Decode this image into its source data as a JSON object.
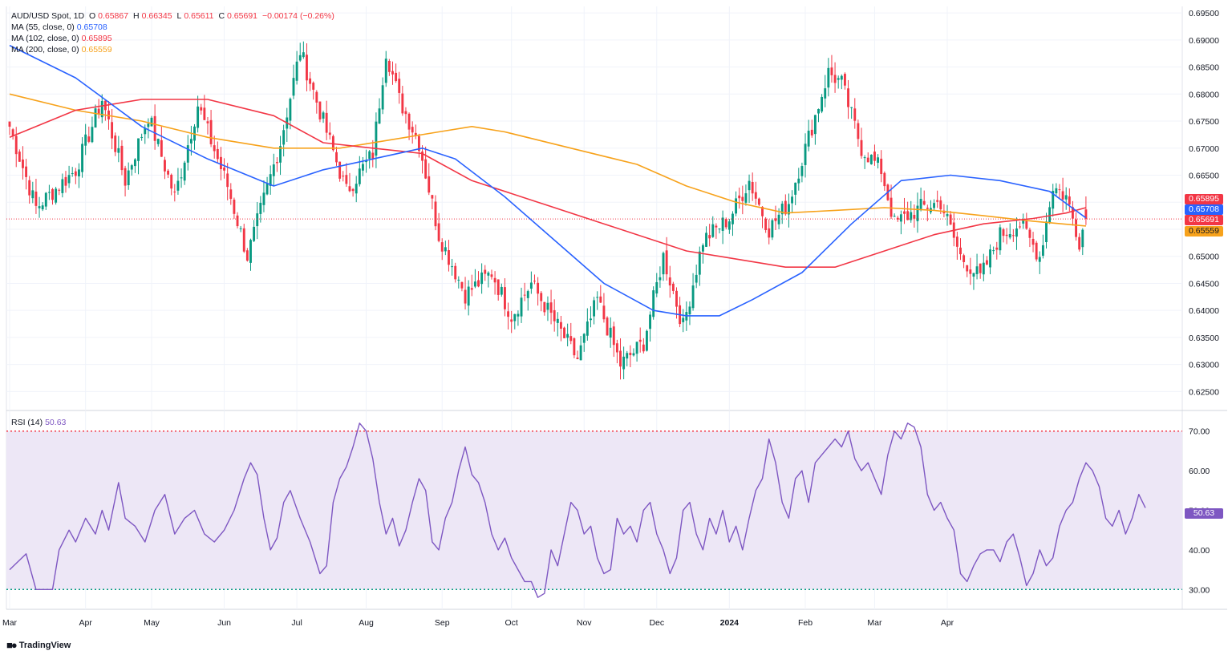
{
  "header": {
    "symbol": "AUD/USD Spot, 1D",
    "o_label": "O",
    "o_value": "0.65867",
    "h_label": "H",
    "h_value": "0.66345",
    "l_label": "L",
    "l_value": "0.65611",
    "c_label": "C",
    "c_value": "0.65691",
    "change": "−0.00174 (−0.26%)"
  },
  "ma_legend": [
    {
      "label": "MA (55, close, 0)",
      "value": "0.65708"
    },
    {
      "label": "MA (102, close, 0)",
      "value": "0.65895"
    },
    {
      "label": "MA (200, close, 0)",
      "value": "0.65559"
    }
  ],
  "rsi_legend": {
    "label": "RSI (14)",
    "value": "50.63"
  },
  "badges": {
    "ma102": "0.65895",
    "ma55": "0.65708",
    "last": "0.65691",
    "ma200": "0.65559",
    "rsi": "50.63"
  },
  "brand": "TradingView",
  "colors": {
    "up": "#089981",
    "down": "#f23645",
    "ma55": "#2962ff",
    "ma102": "#f23645",
    "ma200": "#f7a21b",
    "rsi": "#7e57c2",
    "rsi_band": "#ede7f6"
  },
  "chart_data": [
    {
      "type": "candlestick",
      "title": "AUD/USD Spot, 1D",
      "ylim": [
        0.6215,
        0.6962
      ],
      "y_ticks": [
        "0.69500",
        "0.69000",
        "0.68500",
        "0.68000",
        "0.67500",
        "0.67000",
        "0.66500",
        "0.66000",
        "0.65500",
        "0.65000",
        "0.64500",
        "0.64000",
        "0.63500",
        "0.63000",
        "0.62500"
      ],
      "x_ticks": [
        "Mar",
        "Apr",
        "May",
        "Jun",
        "Jul",
        "Aug",
        "Sep",
        "Oct",
        "Nov",
        "Dec",
        "2024",
        "Feb",
        "Mar",
        "Apr"
      ],
      "anchors": [
        {
          "day": 0,
          "close": 0.674
        },
        {
          "day": 8,
          "close": 0.659
        },
        {
          "day": 20,
          "close": 0.666
        },
        {
          "day": 28,
          "close": 0.679
        },
        {
          "day": 35,
          "close": 0.664
        },
        {
          "day": 42,
          "close": 0.676
        },
        {
          "day": 50,
          "close": 0.661
        },
        {
          "day": 57,
          "close": 0.678
        },
        {
          "day": 66,
          "close": 0.663
        },
        {
          "day": 72,
          "close": 0.65
        },
        {
          "day": 82,
          "close": 0.671
        },
        {
          "day": 88,
          "close": 0.688
        },
        {
          "day": 96,
          "close": 0.673
        },
        {
          "day": 102,
          "close": 0.662
        },
        {
          "day": 110,
          "close": 0.669
        },
        {
          "day": 114,
          "close": 0.688
        },
        {
          "day": 118,
          "close": 0.679
        },
        {
          "day": 124,
          "close": 0.671
        },
        {
          "day": 130,
          "close": 0.654
        },
        {
          "day": 138,
          "close": 0.643
        },
        {
          "day": 146,
          "close": 0.647
        },
        {
          "day": 152,
          "close": 0.639
        },
        {
          "day": 158,
          "close": 0.645
        },
        {
          "day": 165,
          "close": 0.638
        },
        {
          "day": 172,
          "close": 0.631
        },
        {
          "day": 178,
          "close": 0.642
        },
        {
          "day": 185,
          "close": 0.63
        },
        {
          "day": 192,
          "close": 0.634
        },
        {
          "day": 198,
          "close": 0.65
        },
        {
          "day": 204,
          "close": 0.637
        },
        {
          "day": 210,
          "close": 0.653
        },
        {
          "day": 218,
          "close": 0.657
        },
        {
          "day": 224,
          "close": 0.664
        },
        {
          "day": 230,
          "close": 0.655
        },
        {
          "day": 236,
          "close": 0.66
        },
        {
          "day": 242,
          "close": 0.672
        },
        {
          "day": 248,
          "close": 0.684
        },
        {
          "day": 252,
          "close": 0.682
        },
        {
          "day": 258,
          "close": 0.67
        },
        {
          "day": 264,
          "close": 0.666
        },
        {
          "day": 268,
          "close": 0.656
        },
        {
          "day": 276,
          "close": 0.659
        },
        {
          "day": 282,
          "close": 0.66
        },
        {
          "day": 288,
          "close": 0.65
        },
        {
          "day": 294,
          "close": 0.646
        },
        {
          "day": 300,
          "close": 0.654
        },
        {
          "day": 306,
          "close": 0.656
        },
        {
          "day": 312,
          "close": 0.65
        },
        {
          "day": 316,
          "close": 0.663
        },
        {
          "day": 320,
          "close": 0.661
        },
        {
          "day": 324,
          "close": 0.653
        },
        {
          "day": 326,
          "close": 0.6569
        }
      ],
      "ma55_points": [
        [
          0,
          0.689
        ],
        [
          20,
          0.683
        ],
        [
          40,
          0.674
        ],
        [
          60,
          0.668
        ],
        [
          80,
          0.663
        ],
        [
          95,
          0.666
        ],
        [
          110,
          0.668
        ],
        [
          125,
          0.67
        ],
        [
          135,
          0.668
        ],
        [
          150,
          0.661
        ],
        [
          165,
          0.653
        ],
        [
          180,
          0.645
        ],
        [
          195,
          0.64
        ],
        [
          205,
          0.639
        ],
        [
          215,
          0.639
        ],
        [
          225,
          0.642
        ],
        [
          240,
          0.647
        ],
        [
          255,
          0.656
        ],
        [
          270,
          0.664
        ],
        [
          285,
          0.665
        ],
        [
          300,
          0.664
        ],
        [
          315,
          0.662
        ],
        [
          326,
          0.6571
        ]
      ],
      "ma102_points": [
        [
          0,
          0.672
        ],
        [
          20,
          0.677
        ],
        [
          40,
          0.679
        ],
        [
          60,
          0.679
        ],
        [
          80,
          0.676
        ],
        [
          95,
          0.671
        ],
        [
          110,
          0.67
        ],
        [
          125,
          0.669
        ],
        [
          140,
          0.664
        ],
        [
          160,
          0.66
        ],
        [
          180,
          0.656
        ],
        [
          195,
          0.653
        ],
        [
          205,
          0.651
        ],
        [
          215,
          0.65
        ],
        [
          235,
          0.648
        ],
        [
          250,
          0.648
        ],
        [
          265,
          0.651
        ],
        [
          280,
          0.654
        ],
        [
          295,
          0.656
        ],
        [
          310,
          0.657
        ],
        [
          320,
          0.658
        ],
        [
          326,
          0.659
        ]
      ],
      "ma200_points": [
        [
          0,
          0.68
        ],
        [
          20,
          0.677
        ],
        [
          40,
          0.675
        ],
        [
          60,
          0.672
        ],
        [
          80,
          0.67
        ],
        [
          100,
          0.67
        ],
        [
          120,
          0.672
        ],
        [
          130,
          0.673
        ],
        [
          140,
          0.674
        ],
        [
          150,
          0.673
        ],
        [
          170,
          0.67
        ],
        [
          190,
          0.667
        ],
        [
          205,
          0.663
        ],
        [
          220,
          0.66
        ],
        [
          235,
          0.658
        ],
        [
          250,
          0.6585
        ],
        [
          265,
          0.659
        ],
        [
          280,
          0.6585
        ],
        [
          295,
          0.6575
        ],
        [
          310,
          0.6565
        ],
        [
          326,
          0.6556
        ]
      ],
      "last_price": 0.65691
    },
    {
      "type": "line",
      "title": "RSI (14)",
      "ylim": [
        25,
        75
      ],
      "y_ticks": [
        "70.00",
        "60.00",
        "50.00",
        "40.00",
        "30.00"
      ],
      "overbought": 70,
      "oversold": 30,
      "band": [
        30,
        70
      ],
      "points": [
        [
          0,
          35
        ],
        [
          5,
          39
        ],
        [
          8,
          30
        ],
        [
          10,
          30
        ],
        [
          13,
          30
        ],
        [
          15,
          40
        ],
        [
          18,
          45
        ],
        [
          20,
          42
        ],
        [
          23,
          48
        ],
        [
          26,
          44
        ],
        [
          28,
          50
        ],
        [
          30,
          45
        ],
        [
          33,
          57
        ],
        [
          35,
          48
        ],
        [
          38,
          46
        ],
        [
          41,
          42
        ],
        [
          44,
          50
        ],
        [
          47,
          54
        ],
        [
          50,
          44
        ],
        [
          53,
          48
        ],
        [
          56,
          50
        ],
        [
          59,
          44
        ],
        [
          62,
          42
        ],
        [
          65,
          45
        ],
        [
          68,
          50
        ],
        [
          71,
          58
        ],
        [
          73,
          62
        ],
        [
          75,
          59
        ],
        [
          77,
          48
        ],
        [
          79,
          40
        ],
        [
          81,
          43
        ],
        [
          83,
          52
        ],
        [
          85,
          55
        ],
        [
          88,
          48
        ],
        [
          91,
          42
        ],
        [
          94,
          34
        ],
        [
          96,
          36
        ],
        [
          98,
          52
        ],
        [
          100,
          58
        ],
        [
          102,
          61
        ],
        [
          104,
          66
        ],
        [
          106,
          72
        ],
        [
          108,
          70
        ],
        [
          110,
          63
        ],
        [
          112,
          52
        ],
        [
          114,
          44
        ],
        [
          116,
          48
        ],
        [
          118,
          41
        ],
        [
          120,
          45
        ],
        [
          122,
          52
        ],
        [
          124,
          58
        ],
        [
          126,
          55
        ],
        [
          128,
          42
        ],
        [
          130,
          40
        ],
        [
          132,
          48
        ],
        [
          134,
          52
        ],
        [
          136,
          60
        ],
        [
          138,
          66
        ],
        [
          140,
          59
        ],
        [
          142,
          57
        ],
        [
          144,
          52
        ],
        [
          146,
          44
        ],
        [
          148,
          40
        ],
        [
          150,
          43
        ],
        [
          152,
          38
        ],
        [
          154,
          35
        ],
        [
          156,
          32
        ],
        [
          158,
          32
        ],
        [
          160,
          28
        ],
        [
          162,
          29
        ],
        [
          164,
          40
        ],
        [
          166,
          36
        ],
        [
          168,
          44
        ],
        [
          170,
          52
        ],
        [
          172,
          50
        ],
        [
          174,
          44
        ],
        [
          176,
          46
        ],
        [
          178,
          38
        ],
        [
          180,
          34
        ],
        [
          182,
          35
        ],
        [
          184,
          48
        ],
        [
          186,
          44
        ],
        [
          188,
          46
        ],
        [
          190,
          42
        ],
        [
          192,
          50
        ],
        [
          194,
          52
        ],
        [
          196,
          44
        ],
        [
          198,
          40
        ],
        [
          200,
          34
        ],
        [
          202,
          38
        ],
        [
          204,
          50
        ],
        [
          206,
          52
        ],
        [
          208,
          44
        ],
        [
          210,
          40
        ],
        [
          212,
          48
        ],
        [
          214,
          44
        ],
        [
          216,
          50
        ],
        [
          218,
          42
        ],
        [
          220,
          46
        ],
        [
          222,
          40
        ],
        [
          224,
          48
        ],
        [
          226,
          55
        ],
        [
          228,
          58
        ],
        [
          230,
          68
        ],
        [
          232,
          62
        ],
        [
          234,
          52
        ],
        [
          236,
          48
        ],
        [
          238,
          58
        ],
        [
          240,
          60
        ],
        [
          242,
          52
        ],
        [
          244,
          62
        ],
        [
          246,
          64
        ],
        [
          248,
          66
        ],
        [
          250,
          68
        ],
        [
          252,
          66
        ],
        [
          254,
          70
        ],
        [
          256,
          63
        ],
        [
          258,
          60
        ],
        [
          260,
          62
        ],
        [
          262,
          58
        ],
        [
          264,
          54
        ],
        [
          266,
          64
        ],
        [
          268,
          70
        ],
        [
          270,
          68
        ],
        [
          272,
          72
        ],
        [
          274,
          71
        ],
        [
          276,
          66
        ],
        [
          278,
          54
        ],
        [
          280,
          50
        ],
        [
          282,
          52
        ],
        [
          284,
          48
        ],
        [
          286,
          45
        ],
        [
          288,
          34
        ],
        [
          290,
          32
        ],
        [
          292,
          36
        ],
        [
          294,
          39
        ],
        [
          296,
          40
        ],
        [
          298,
          40
        ],
        [
          300,
          37
        ],
        [
          302,
          42
        ],
        [
          304,
          44
        ],
        [
          306,
          38
        ],
        [
          308,
          31
        ],
        [
          310,
          34
        ],
        [
          312,
          40
        ],
        [
          314,
          36
        ],
        [
          316,
          38
        ],
        [
          318,
          46
        ],
        [
          320,
          50
        ],
        [
          322,
          52
        ],
        [
          324,
          58
        ],
        [
          326,
          62
        ],
        [
          328,
          60
        ],
        [
          330,
          56
        ],
        [
          332,
          48
        ],
        [
          334,
          46
        ],
        [
          336,
          50
        ],
        [
          338,
          44
        ],
        [
          340,
          48
        ],
        [
          342,
          54
        ],
        [
          344,
          50.63
        ]
      ]
    }
  ]
}
